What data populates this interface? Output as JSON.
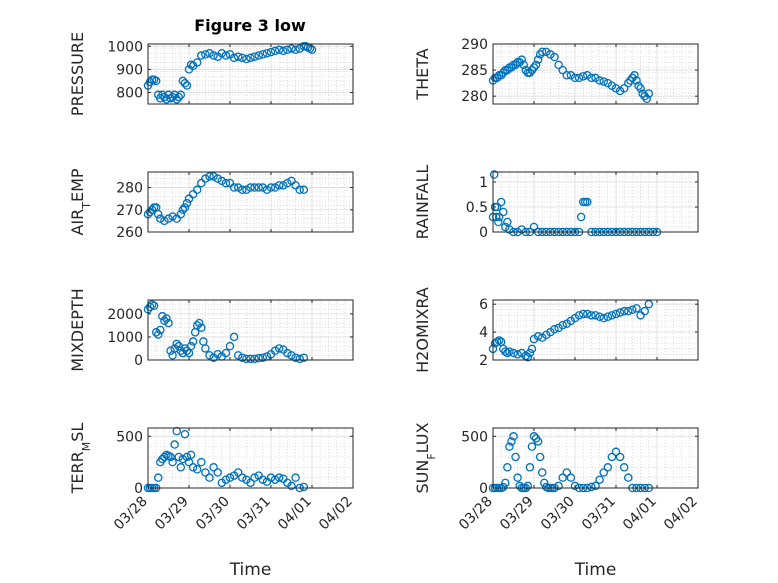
{
  "title": "Figure 3 low",
  "marker_color": "#0072bd",
  "x_ticks": [
    "03/28",
    "03/29",
    "03/30",
    "03/31",
    "04/01",
    "04/02"
  ],
  "x_label": "Time",
  "chart_data": [
    {
      "type": "scatter",
      "ylabel": "PRESSURE",
      "xlim": [
        0,
        5
      ],
      "ylim": [
        750,
        1010
      ],
      "yticks": [
        800,
        900,
        1000
      ],
      "grid": true,
      "x": [
        0.0,
        0.05,
        0.1,
        0.15,
        0.2,
        0.25,
        0.3,
        0.35,
        0.4,
        0.45,
        0.5,
        0.55,
        0.6,
        0.65,
        0.7,
        0.75,
        0.8,
        0.85,
        0.9,
        0.95,
        1.0,
        1.05,
        1.1,
        1.2,
        1.3,
        1.4,
        1.5,
        1.6,
        1.7,
        1.8,
        1.9,
        2.0,
        2.1,
        2.2,
        2.3,
        2.4,
        2.5,
        2.6,
        2.7,
        2.8,
        2.9,
        3.0,
        3.1,
        3.2,
        3.3,
        3.4,
        3.5,
        3.6,
        3.7,
        3.8,
        3.85,
        3.9,
        3.95,
        4.0
      ],
      "y": [
        830,
        845,
        855,
        855,
        850,
        790,
        775,
        790,
        780,
        770,
        790,
        775,
        780,
        790,
        770,
        780,
        790,
        850,
        840,
        830,
        900,
        920,
        915,
        930,
        960,
        965,
        970,
        960,
        955,
        970,
        960,
        965,
        950,
        955,
        950,
        945,
        950,
        955,
        960,
        965,
        970,
        975,
        980,
        985,
        980,
        985,
        990,
        985,
        990,
        1000,
        1000,
        995,
        990,
        985
      ]
    },
    {
      "type": "scatter",
      "ylabel": "THETA",
      "xlim": [
        0,
        5
      ],
      "ylim": [
        278.5,
        290
      ],
      "yticks": [
        280,
        285,
        290
      ],
      "grid": true,
      "x": [
        0.0,
        0.05,
        0.1,
        0.15,
        0.2,
        0.25,
        0.3,
        0.35,
        0.4,
        0.45,
        0.5,
        0.55,
        0.6,
        0.65,
        0.7,
        0.75,
        0.8,
        0.85,
        0.9,
        0.95,
        1.0,
        1.05,
        1.1,
        1.15,
        1.2,
        1.3,
        1.4,
        1.5,
        1.6,
        1.7,
        1.8,
        1.9,
        2.0,
        2.1,
        2.2,
        2.3,
        2.4,
        2.5,
        2.6,
        2.7,
        2.8,
        2.9,
        3.0,
        3.1,
        3.2,
        3.3,
        3.35,
        3.4,
        3.45,
        3.5,
        3.55,
        3.6,
        3.65,
        3.7,
        3.75,
        3.8
      ],
      "y": [
        283,
        283.5,
        283.5,
        284,
        284,
        284.5,
        285,
        285,
        285.5,
        285.5,
        286,
        286,
        286.5,
        286.5,
        287,
        286,
        285,
        284.5,
        284.5,
        285,
        285.5,
        286,
        287,
        288,
        288.5,
        288.5,
        288,
        287.5,
        286,
        285,
        284,
        284,
        283.5,
        283.5,
        283.8,
        284,
        283.5,
        283.5,
        283,
        282.8,
        282.5,
        282,
        281.5,
        281,
        281.5,
        282.5,
        283,
        283.5,
        284,
        283,
        282,
        281.5,
        280.5,
        280,
        279.5,
        280.5
      ]
    },
    {
      "type": "scatter",
      "ylabel": "AIR_TEMP",
      "xlim": [
        0,
        5
      ],
      "ylim": [
        260,
        287
      ],
      "yticks": [
        260,
        270,
        280
      ],
      "grid": true,
      "x": [
        0.0,
        0.05,
        0.1,
        0.15,
        0.2,
        0.25,
        0.3,
        0.4,
        0.5,
        0.6,
        0.7,
        0.8,
        0.85,
        0.9,
        0.95,
        1.0,
        1.1,
        1.2,
        1.3,
        1.4,
        1.5,
        1.6,
        1.7,
        1.8,
        1.9,
        2.0,
        2.1,
        2.2,
        2.3,
        2.4,
        2.5,
        2.6,
        2.7,
        2.8,
        2.9,
        3.0,
        3.1,
        3.2,
        3.3,
        3.4,
        3.5,
        3.6,
        3.7,
        3.8
      ],
      "y": [
        268,
        269,
        270,
        271,
        271,
        268,
        266,
        265,
        266,
        267,
        266,
        268,
        270,
        271,
        273,
        275,
        277,
        279,
        282,
        284,
        285,
        285,
        284,
        283,
        282,
        282,
        280,
        280,
        279,
        279,
        280,
        280,
        280,
        280,
        279,
        280,
        280,
        281,
        281,
        282,
        283,
        281,
        279,
        279
      ]
    },
    {
      "type": "scatter",
      "ylabel": "RAINFALL",
      "xlim": [
        0,
        5
      ],
      "ylim": [
        0,
        1.2
      ],
      "yticks": [
        0,
        0.5,
        1
      ],
      "grid": true,
      "x": [
        0.0,
        0.03,
        0.05,
        0.08,
        0.1,
        0.13,
        0.15,
        0.2,
        0.25,
        0.3,
        0.35,
        0.4,
        0.5,
        0.6,
        0.7,
        0.8,
        0.9,
        1.0,
        1.1,
        1.2,
        1.3,
        1.4,
        1.5,
        1.6,
        1.7,
        1.8,
        1.9,
        2.0,
        2.1,
        2.15,
        2.2,
        2.25,
        2.3,
        2.4,
        2.5,
        2.6,
        2.7,
        2.8,
        2.9,
        3.0,
        3.1,
        3.2,
        3.3,
        3.4,
        3.5,
        3.6,
        3.7,
        3.8,
        3.9,
        4.0
      ],
      "y": [
        0.3,
        1.15,
        0.5,
        0.3,
        0.5,
        0.2,
        0.3,
        0.6,
        0.4,
        0.1,
        0.2,
        0.05,
        0,
        0,
        0.05,
        0,
        0,
        0.1,
        0,
        0,
        0,
        0,
        0,
        0,
        0,
        0,
        0,
        0,
        0,
        0.3,
        0.6,
        0.6,
        0.6,
        0,
        0,
        0,
        0,
        0,
        0,
        0,
        0,
        0,
        0,
        0,
        0,
        0,
        0,
        0,
        0,
        0
      ]
    },
    {
      "type": "scatter",
      "ylabel": "MIXDEPTH",
      "xlim": [
        0,
        5
      ],
      "ylim": [
        0,
        2600
      ],
      "yticks": [
        0,
        1000,
        2000
      ],
      "grid": true,
      "x": [
        0.0,
        0.05,
        0.1,
        0.15,
        0.2,
        0.25,
        0.3,
        0.35,
        0.4,
        0.45,
        0.5,
        0.55,
        0.6,
        0.65,
        0.7,
        0.75,
        0.8,
        0.85,
        0.9,
        0.95,
        1.0,
        1.05,
        1.1,
        1.15,
        1.2,
        1.25,
        1.3,
        1.35,
        1.4,
        1.5,
        1.6,
        1.7,
        1.8,
        1.9,
        2.0,
        2.1,
        2.2,
        2.3,
        2.4,
        2.5,
        2.6,
        2.7,
        2.8,
        2.9,
        3.0,
        3.1,
        3.2,
        3.3,
        3.4,
        3.5,
        3.6,
        3.7,
        3.8
      ],
      "y": [
        2200,
        2300,
        2400,
        2350,
        1200,
        1100,
        1300,
        1900,
        1700,
        1800,
        1600,
        400,
        200,
        500,
        700,
        600,
        400,
        300,
        500,
        400,
        300,
        600,
        800,
        1200,
        1500,
        1600,
        1400,
        800,
        500,
        200,
        100,
        250,
        150,
        300,
        600,
        1000,
        200,
        100,
        50,
        50,
        50,
        80,
        100,
        150,
        250,
        400,
        500,
        450,
        300,
        200,
        100,
        50,
        100
      ]
    },
    {
      "type": "scatter",
      "ylabel": "H2OMIXRA",
      "xlim": [
        0,
        5
      ],
      "ylim": [
        2,
        6.3
      ],
      "yticks": [
        2,
        4,
        6
      ],
      "grid": true,
      "x": [
        0.0,
        0.05,
        0.1,
        0.15,
        0.2,
        0.25,
        0.3,
        0.35,
        0.4,
        0.5,
        0.6,
        0.7,
        0.8,
        0.85,
        0.9,
        0.95,
        1.0,
        1.1,
        1.2,
        1.3,
        1.4,
        1.5,
        1.6,
        1.7,
        1.8,
        1.9,
        2.0,
        2.1,
        2.2,
        2.3,
        2.4,
        2.5,
        2.6,
        2.7,
        2.8,
        2.9,
        3.0,
        3.1,
        3.2,
        3.3,
        3.4,
        3.5,
        3.6,
        3.7,
        3.8
      ],
      "y": [
        2.8,
        3.2,
        3.3,
        3.4,
        3.3,
        2.8,
        2.6,
        2.5,
        2.6,
        2.5,
        2.4,
        2.5,
        2.3,
        2.2,
        2.5,
        2.8,
        3.5,
        3.7,
        3.6,
        3.8,
        4.0,
        4.2,
        4.3,
        4.5,
        4.6,
        4.8,
        5.0,
        5.2,
        5.3,
        5.3,
        5.2,
        5.2,
        5.1,
        5.0,
        5.1,
        5.2,
        5.3,
        5.4,
        5.5,
        5.5,
        5.6,
        5.7,
        5.2,
        5.5,
        6.0
      ]
    },
    {
      "type": "scatter",
      "ylabel": "TERR_MSL",
      "xlim": [
        0,
        5
      ],
      "ylim": [
        0,
        580
      ],
      "yticks": [
        0,
        500
      ],
      "grid": true,
      "x": [
        0.0,
        0.05,
        0.1,
        0.15,
        0.2,
        0.25,
        0.3,
        0.35,
        0.4,
        0.45,
        0.5,
        0.55,
        0.6,
        0.65,
        0.7,
        0.75,
        0.8,
        0.85,
        0.9,
        0.95,
        1.0,
        1.05,
        1.1,
        1.2,
        1.3,
        1.4,
        1.5,
        1.6,
        1.7,
        1.8,
        1.9,
        2.0,
        2.1,
        2.2,
        2.3,
        2.4,
        2.5,
        2.6,
        2.7,
        2.8,
        2.9,
        3.0,
        3.1,
        3.2,
        3.3,
        3.4,
        3.5,
        3.6,
        3.7,
        3.8
      ],
      "y": [
        0,
        0,
        0,
        0,
        0,
        100,
        250,
        280,
        300,
        320,
        310,
        300,
        250,
        420,
        550,
        300,
        200,
        280,
        520,
        300,
        250,
        320,
        200,
        180,
        250,
        150,
        100,
        200,
        150,
        50,
        80,
        100,
        120,
        150,
        100,
        80,
        50,
        100,
        120,
        80,
        60,
        100,
        80,
        100,
        90,
        50,
        20,
        100,
        0,
        10
      ]
    },
    {
      "type": "scatter",
      "ylabel": "SUN_FLUX",
      "xlim": [
        0,
        5
      ],
      "ylim": [
        0,
        580
      ],
      "yticks": [
        0,
        500
      ],
      "grid": true,
      "x": [
        0.0,
        0.05,
        0.1,
        0.15,
        0.2,
        0.25,
        0.3,
        0.35,
        0.4,
        0.45,
        0.5,
        0.55,
        0.6,
        0.65,
        0.7,
        0.75,
        0.8,
        0.85,
        0.9,
        0.95,
        1.0,
        1.05,
        1.1,
        1.15,
        1.2,
        1.25,
        1.3,
        1.35,
        1.4,
        1.45,
        1.5,
        1.6,
        1.7,
        1.8,
        1.9,
        2.0,
        2.1,
        2.2,
        2.3,
        2.4,
        2.5,
        2.6,
        2.7,
        2.8,
        2.9,
        3.0,
        3.1,
        3.2,
        3.3,
        3.4,
        3.5,
        3.6,
        3.7,
        3.8
      ],
      "y": [
        0,
        0,
        0,
        0,
        0,
        10,
        50,
        200,
        400,
        450,
        500,
        300,
        100,
        20,
        0,
        0,
        0,
        20,
        200,
        400,
        500,
        480,
        450,
        300,
        150,
        50,
        10,
        0,
        0,
        0,
        0,
        20,
        100,
        150,
        100,
        20,
        0,
        0,
        0,
        10,
        20,
        80,
        150,
        200,
        300,
        350,
        300,
        200,
        100,
        0,
        0,
        0,
        0,
        0
      ]
    }
  ]
}
